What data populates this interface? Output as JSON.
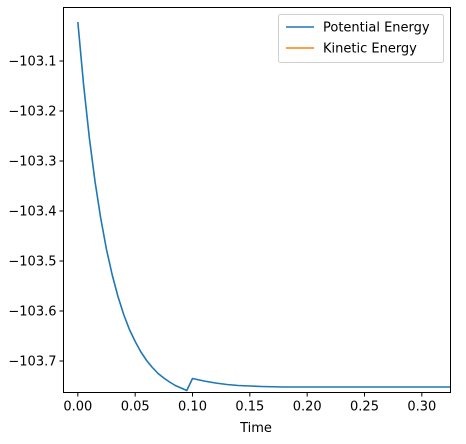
{
  "chart_data": {
    "type": "line",
    "title": "",
    "xlabel": "Time",
    "ylabel": "",
    "xlim": [
      -0.0125,
      0.325
    ],
    "ylim": [
      -103.763,
      -102.993
    ],
    "xticks": [
      0.0,
      0.05,
      0.1,
      0.15,
      0.2,
      0.25,
      0.3
    ],
    "xtick_labels": [
      "0.00",
      "0.05",
      "0.10",
      "0.15",
      "0.20",
      "0.25",
      "0.30"
    ],
    "yticks": [
      -103.1,
      -103.2,
      -103.3,
      -103.4,
      -103.5,
      -103.6,
      -103.7
    ],
    "ytick_labels": [
      "−103.1",
      "−103.2",
      "−103.3",
      "−103.4",
      "−103.5",
      "−103.6",
      "−103.7"
    ],
    "grid": false,
    "legend_position": "top-right",
    "series": [
      {
        "name": "Potential Energy",
        "color": "#1f77b4",
        "x": [
          0.0,
          0.005,
          0.01,
          0.015,
          0.02,
          0.025,
          0.03,
          0.035,
          0.04,
          0.045,
          0.05,
          0.055,
          0.06,
          0.065,
          0.07,
          0.075,
          0.08,
          0.085,
          0.09,
          0.095,
          0.1,
          0.11,
          0.12,
          0.13,
          0.14,
          0.15,
          0.16,
          0.17,
          0.18,
          0.19,
          0.2,
          0.22,
          0.24,
          0.26,
          0.28,
          0.3,
          0.325
        ],
        "y": [
          -103.022,
          -103.147,
          -103.253,
          -103.341,
          -103.415,
          -103.477,
          -103.528,
          -103.571,
          -103.607,
          -103.637,
          -103.661,
          -103.682,
          -103.699,
          -103.713,
          -103.725,
          -103.734,
          -103.742,
          -103.749,
          -103.754,
          -103.759,
          -103.735,
          -103.74,
          -103.744,
          -103.747,
          -103.749,
          -103.75,
          -103.751,
          -103.7515,
          -103.752,
          -103.752,
          -103.752,
          -103.752,
          -103.752,
          -103.752,
          -103.752,
          -103.752,
          -103.752
        ]
      },
      {
        "name": "Kinetic Energy",
        "color": "#ff7f0e",
        "x": [],
        "y": []
      }
    ]
  }
}
